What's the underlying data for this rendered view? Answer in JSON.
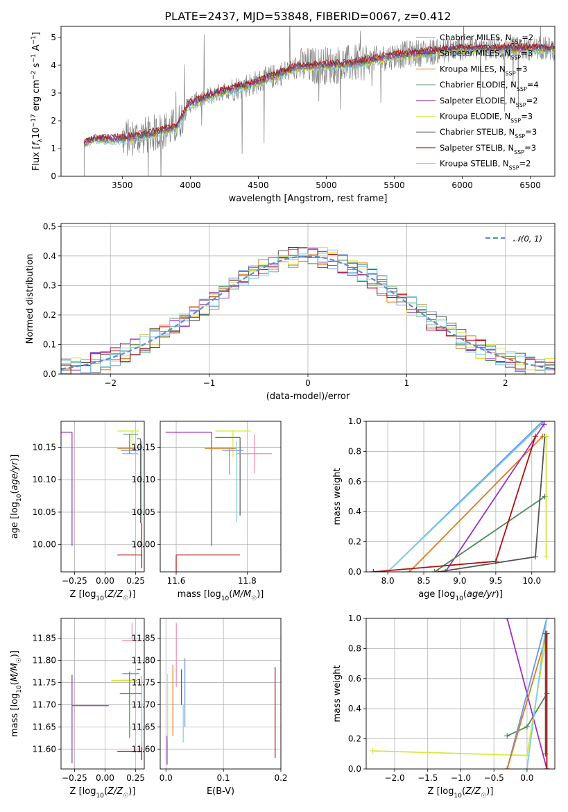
{
  "title": "PLATE=2437, MJD=53848, FIBERID=0067, z=0.412",
  "colors": {
    "Chabrier MILES": "#6495ED",
    "Salpeter MILES": "#3a3a3a",
    "Kroupa MILES": "#E07A1F",
    "Chabrier ELODIE": "#4E8A57",
    "Salpeter ELODIE": "#9B30C0",
    "Kroupa ELODIE": "#D8E63A",
    "Chabrier STELIB": "#555555",
    "Salpeter STELIB": "#B01010",
    "Kroupa STELIB": "#7FD0E0",
    "data": "#808080",
    "normal": "#5A8BD6",
    "pink": "#F08CB0"
  },
  "chart_data": [
    {
      "type": "line",
      "id": "spectrum",
      "xlabel": "wavelength [Angstrom, rest frame]",
      "ylabel": "Flux [f_λ 10^-17 erg cm^-2 s^-1 A^-1]",
      "xlim": [
        3050,
        6680
      ],
      "ylim": [
        0,
        5.4
      ],
      "xticks": [
        3500,
        4000,
        4500,
        5000,
        5500,
        6000,
        6500
      ],
      "yticks": [
        0,
        1,
        2,
        3,
        4,
        5
      ],
      "grid": false,
      "legend_position": "top-right",
      "legend": [
        {
          "name": "Chabrier MILES, N_SSP=2",
          "base": "Chabrier MILES, N",
          "sub": "SSP",
          "tail": "=2"
        },
        {
          "name": "Salpeter MILES, N_SSP=3",
          "base": "Salpeter MILES, N",
          "sub": "SSP",
          "tail": "=3"
        },
        {
          "name": "Kroupa MILES, N_SSP=3",
          "base": "Kroupa MILES, N",
          "sub": "SSP",
          "tail": "=3"
        },
        {
          "name": "Chabrier ELODIE, N_SSP=4",
          "base": "Chabrier ELODIE, N",
          "sub": "SSP",
          "tail": "=4"
        },
        {
          "name": "Salpeter ELODIE, N_SSP=2",
          "base": "Salpeter ELODIE, N",
          "sub": "SSP",
          "tail": "=2"
        },
        {
          "name": "Kroupa ELODIE, N_SSP=3",
          "base": "Kroupa ELODIE, N",
          "sub": "SSP",
          "tail": "=3"
        },
        {
          "name": "Chabrier STELIB, N_SSP=3",
          "base": "Chabrier STELIB, N",
          "sub": "SSP",
          "tail": "=3"
        },
        {
          "name": "Salpeter STELIB, N_SSP=3",
          "base": "Salpeter STELIB, N",
          "sub": "SSP",
          "tail": "=3"
        },
        {
          "name": "Kroupa STELIB, N_SSP=2",
          "base": "Kroupa STELIB, N",
          "sub": "SSP",
          "tail": "=2"
        }
      ],
      "continuum_x": [
        3220,
        3300,
        3500,
        3700,
        3900,
        3990,
        4200,
        4500,
        4800,
        5200,
        5500,
        6000,
        6500,
        6680
      ],
      "continuum_y": [
        1.2,
        1.35,
        1.35,
        1.5,
        1.8,
        2.6,
        3.0,
        3.4,
        3.95,
        4.05,
        4.35,
        4.6,
        4.6,
        4.6
      ],
      "data_start": 3220
    },
    {
      "type": "bar",
      "id": "residuals",
      "xlabel": "(data-model)/error",
      "ylabel": "Normed distribution",
      "xlim": [
        -2.5,
        2.5
      ],
      "ylim": [
        0,
        0.51
      ],
      "xticks": [
        -2,
        -1,
        0,
        1,
        2
      ],
      "yticks": [
        0.0,
        0.1,
        0.2,
        0.3,
        0.4,
        0.5
      ],
      "grid": true,
      "legend_position": "top-right",
      "reference_label": "𝒩(0, 1)",
      "bin_width": 0.1
    },
    {
      "type": "scatter",
      "id": "age_vs_Z",
      "xlabel": "Z [log10(Z/Z☉)]",
      "ylabel": "age [log10(age/yr)]",
      "xlim": [
        -0.36,
        0.32
      ],
      "ylim": [
        9.958,
        10.19
      ],
      "xticks": [
        -0.25,
        0.0,
        0.25
      ],
      "yticks": [
        10.0,
        10.05,
        10.1,
        10.15
      ],
      "grid": true,
      "points": [
        {
          "model": "Salpeter ELODIE",
          "x": -0.27,
          "y": 10.173,
          "xerr": [
            0.3,
            0.0
          ],
          "yerr": [
            0.175,
            0.0
          ]
        },
        {
          "model": "Kroupa ELODIE",
          "x": 0.22,
          "y": 10.175,
          "xerr": [
            0.12,
            0.06
          ],
          "yerr": [
            0.03,
            0.0
          ]
        },
        {
          "model": "Chabrier ELODIE",
          "x": 0.2,
          "y": 10.17,
          "xerr": [
            0.05,
            0.07
          ],
          "yerr": [
            0.03,
            0.0
          ]
        },
        {
          "model": "Chabrier STELIB",
          "x": 0.29,
          "y": 10.163,
          "xerr": [
            0.03,
            0.0
          ],
          "yerr": [
            0.13,
            0.0
          ]
        },
        {
          "model": "Chabrier MILES",
          "x": 0.22,
          "y": 10.145,
          "xerr": [
            0.09,
            0.06
          ],
          "yerr": [
            0.0,
            0.0
          ]
        },
        {
          "model": "Kroupa MILES",
          "x": 0.2,
          "y": 10.148,
          "xerr": [
            0.1,
            0.05
          ],
          "yerr": [
            0.0,
            0.0
          ]
        },
        {
          "model": "pink",
          "x": 0.22,
          "y": 10.14,
          "xerr": [
            0.08,
            0.05
          ],
          "yerr": [
            0.0,
            0.0
          ]
        },
        {
          "model": "Kroupa STELIB",
          "x": 0.3,
          "y": 10.16,
          "xerr": [
            0.0,
            0.0
          ],
          "yerr": [
            0.125,
            0.0
          ]
        },
        {
          "model": "Salpeter STELIB",
          "x": 0.3,
          "y": 9.984,
          "xerr": [
            0.2,
            0.0
          ],
          "yerr": [
            0.02,
            0.05
          ]
        }
      ]
    },
    {
      "type": "scatter",
      "id": "age_vs_mass",
      "xlabel": "mass [log10(M/M☉)]",
      "ylabel": "",
      "xlim": [
        11.555,
        11.895
      ],
      "ylim": [
        9.958,
        10.19
      ],
      "xticks": [
        11.6,
        11.8
      ],
      "yticks": [
        10.0,
        10.05,
        10.1,
        10.15
      ],
      "grid": true,
      "points": [
        {
          "model": "Salpeter ELODIE",
          "x": 11.7,
          "y": 10.173,
          "xerr": [
            0.13,
            0.0
          ],
          "yerr": [
            0.175,
            0.0
          ]
        },
        {
          "model": "Kroupa ELODIE",
          "x": 11.76,
          "y": 10.175,
          "xerr": [
            0.05,
            0.05
          ],
          "yerr": [
            0.04,
            0.0
          ]
        },
        {
          "model": "Chabrier ELODIE",
          "x": 11.73,
          "y": 10.165,
          "xerr": [
            0.02,
            0.05
          ],
          "yerr": [
            0.0,
            0.0
          ]
        },
        {
          "model": "Chabrier STELIB",
          "x": 11.78,
          "y": 10.165,
          "xerr": [
            0.0,
            0.0
          ],
          "yerr": [
            0.12,
            0.0
          ]
        },
        {
          "model": "Kroupa MILES",
          "x": 11.75,
          "y": 10.148,
          "xerr": [
            0.07,
            0.02
          ],
          "yerr": [
            0.04,
            0.0
          ]
        },
        {
          "model": "Chabrier MILES",
          "x": 11.77,
          "y": 10.145,
          "xerr": [
            0.04,
            0.02
          ],
          "yerr": [
            0.0,
            0.0
          ]
        },
        {
          "model": "pink",
          "x": 11.82,
          "y": 10.14,
          "xerr": [
            0.05,
            0.05
          ],
          "yerr": [
            0.03,
            0.03
          ]
        },
        {
          "model": "Kroupa STELIB",
          "x": 11.77,
          "y": 10.16,
          "xerr": [
            0.0,
            0.0
          ],
          "yerr": [
            0.125,
            0.0
          ]
        },
        {
          "model": "Salpeter STELIB",
          "x": 11.6,
          "y": 9.984,
          "xerr": [
            0.0,
            0.18
          ],
          "yerr": [
            0.12,
            0.0
          ]
        }
      ]
    },
    {
      "type": "line",
      "id": "weight_vs_age",
      "xlabel": "age [log10(age/yr)]",
      "ylabel": "mass weight",
      "xlim": [
        7.7,
        10.32
      ],
      "ylim": [
        0,
        1.0
      ],
      "xticks": [
        8.0,
        8.5,
        9.0,
        9.5,
        10.0
      ],
      "yticks": [
        0.0,
        0.2,
        0.4,
        0.6,
        0.8,
        1.0
      ],
      "grid": true,
      "series": [
        {
          "model": "Chabrier MILES",
          "x": [
            8.0,
            10.15
          ],
          "y": [
            0.0,
            1.0
          ]
        },
        {
          "model": "Kroupa STELIB",
          "x": [
            8.0,
            10.18
          ],
          "y": [
            0.0,
            1.0
          ]
        },
        {
          "model": "Kroupa MILES",
          "x": [
            8.3,
            10.15
          ],
          "y": [
            0.0,
            0.9
          ]
        },
        {
          "model": "Salpeter ELODIE",
          "x": [
            8.8,
            10.17
          ],
          "y": [
            0.0,
            0.98
          ]
        },
        {
          "model": "Chabrier ELODIE",
          "x": [
            8.65,
            10.18
          ],
          "y": [
            0.0,
            0.5
          ]
        },
        {
          "model": "Chabrier STELIB",
          "x": [
            8.7,
            10.05,
            10.18
          ],
          "y": [
            0.0,
            0.1,
            0.9
          ]
        },
        {
          "model": "Salpeter STELIB",
          "x": [
            7.8,
            9.5,
            10.05
          ],
          "y": [
            0.0,
            0.07,
            0.9
          ]
        },
        {
          "model": "Kroupa ELODIE",
          "x": [
            10.2,
            10.2
          ],
          "y": [
            0.1,
            0.9
          ]
        }
      ]
    },
    {
      "type": "scatter",
      "id": "mass_vs_Z",
      "xlabel": "Z [log10(Z/Z☉)]",
      "ylabel": "mass [log10(M/M☉)]",
      "xlim": [
        -0.36,
        0.32
      ],
      "ylim": [
        11.555,
        11.895
      ],
      "xticks": [
        -0.25,
        0.0,
        0.25
      ],
      "yticks": [
        11.6,
        11.65,
        11.7,
        11.75,
        11.8,
        11.85
      ],
      "grid": true,
      "points": [
        {
          "model": "Salpeter ELODIE",
          "x": -0.27,
          "y": 11.698,
          "xerr": [
            0.0,
            0.3
          ],
          "yerr": [
            0.13,
            0.07
          ]
        },
        {
          "model": "pink",
          "x": 0.22,
          "y": 11.845,
          "xerr": [
            0.08,
            0.08
          ],
          "yerr": [
            0.0,
            0.04
          ]
        },
        {
          "model": "Chabrier STELIB",
          "x": 0.29,
          "y": 11.78,
          "xerr": [
            0.03,
            0.0
          ],
          "yerr": [
            0.0,
            0.0
          ]
        },
        {
          "model": "Chabrier MILES",
          "x": 0.22,
          "y": 11.77,
          "xerr": [
            0.08,
            0.06
          ],
          "yerr": [
            0.0,
            0.0
          ]
        },
        {
          "model": "Kroupa MILES",
          "x": 0.2,
          "y": 11.755,
          "xerr": [
            0.07,
            0.06
          ],
          "yerr": [
            0.0,
            0.0
          ]
        },
        {
          "model": "Kroupa ELODIE",
          "x": 0.15,
          "y": 11.755,
          "xerr": [
            0.1,
            0.1
          ],
          "yerr": [
            0.0,
            0.0
          ]
        },
        {
          "model": "Chabrier ELODIE",
          "x": 0.2,
          "y": 11.725,
          "xerr": [
            0.08,
            0.1
          ],
          "yerr": [
            0.1,
            0.05
          ]
        },
        {
          "model": "Salpeter STELIB",
          "x": 0.3,
          "y": 11.595,
          "xerr": [
            0.2,
            0.0
          ],
          "yerr": [
            0.02,
            0.02
          ]
        },
        {
          "model": "Kroupa STELIB",
          "x": 0.3,
          "y": 11.765,
          "xerr": [
            0.0,
            0.0
          ],
          "yerr": [
            0.16,
            0.0
          ]
        }
      ]
    },
    {
      "type": "scatter",
      "id": "mass_vs_ebv",
      "xlabel": "E(B-V)",
      "ylabel": "",
      "xlim": [
        -0.01,
        0.2
      ],
      "ylim": [
        11.555,
        11.895
      ],
      "xticks": [
        0.0,
        0.1,
        0.2
      ],
      "yticks": [
        11.6,
        11.65,
        11.7,
        11.75,
        11.8,
        11.85
      ],
      "grid": true,
      "points": [
        {
          "model": "Salpeter ELODIE",
          "x": 0.002,
          "y": 11.6,
          "xerr": [
            0.0,
            0.0
          ],
          "yerr": [
            0.035,
            0.03
          ]
        },
        {
          "model": "Kroupa ELODIE",
          "x": 0.003,
          "y": 11.7,
          "xerr": [
            0.0,
            0.0
          ],
          "yerr": [
            0.08,
            0.07
          ]
        },
        {
          "model": "Kroupa MILES",
          "x": 0.012,
          "y": 11.7,
          "xerr": [
            0.0,
            0.0
          ],
          "yerr": [
            0.07,
            0.09
          ]
        },
        {
          "model": "pink",
          "x": 0.018,
          "y": 11.8,
          "xerr": [
            0.0,
            0.0
          ],
          "yerr": [
            0.06,
            0.085
          ]
        },
        {
          "model": "Chabrier STELIB",
          "x": 0.027,
          "y": 11.75,
          "xerr": [
            0.0,
            0.0
          ],
          "yerr": [
            0.05,
            0.03
          ]
        },
        {
          "model": "Kroupa STELIB",
          "x": 0.03,
          "y": 11.7,
          "xerr": [
            0.0,
            0.0
          ],
          "yerr": [
            0.085,
            0.0
          ]
        },
        {
          "model": "Chabrier MILES",
          "x": 0.033,
          "y": 11.74,
          "xerr": [
            0.0,
            0.0
          ],
          "yerr": [
            0.09,
            0.065
          ]
        },
        {
          "model": "Salpeter STELIB",
          "x": 0.19,
          "y": 11.7,
          "xerr": [
            0.0,
            0.0
          ],
          "yerr": [
            0.12,
            0.085
          ]
        }
      ]
    },
    {
      "type": "line",
      "id": "weight_vs_Z",
      "xlabel": "Z [log10(Z/Z☉)]",
      "ylabel": "mass weight",
      "xlim": [
        -2.43,
        0.42
      ],
      "ylim": [
        0,
        1.0
      ],
      "xticks": [
        -2.0,
        -1.5,
        -1.0,
        -0.5,
        0.0
      ],
      "yticks": [
        0.0,
        0.2,
        0.4,
        0.6,
        0.8,
        1.0
      ],
      "grid": true,
      "series": [
        {
          "model": "Kroupa ELODIE",
          "x": [
            -2.33,
            0.0,
            0.3
          ],
          "y": [
            0.12,
            0.09,
            0.9
          ]
        },
        {
          "model": "Chabrier ELODIE",
          "x": [
            -0.3,
            0.0,
            0.3
          ],
          "y": [
            0.22,
            0.28,
            0.5
          ]
        },
        {
          "model": "Salpeter ELODIE",
          "x": [
            -0.3,
            0.3
          ],
          "y": [
            1.0,
            0.0
          ]
        },
        {
          "model": "Chabrier MILES",
          "x": [
            -0.3,
            0.3
          ],
          "y": [
            0.0,
            1.0
          ]
        },
        {
          "model": "Kroupa MILES",
          "x": [
            -0.3,
            0.3
          ],
          "y": [
            0.0,
            0.9
          ]
        },
        {
          "model": "Kroupa STELIB",
          "x": [
            0.0,
            0.3
          ],
          "y": [
            0.0,
            1.0
          ]
        },
        {
          "model": "Salpeter STELIB",
          "x": [
            0.3,
            0.3
          ],
          "y": [
            0.0,
            0.9
          ]
        },
        {
          "model": "Chabrier STELIB",
          "x": [
            0.28,
            0.28
          ],
          "y": [
            0.1,
            0.9
          ]
        }
      ]
    }
  ]
}
